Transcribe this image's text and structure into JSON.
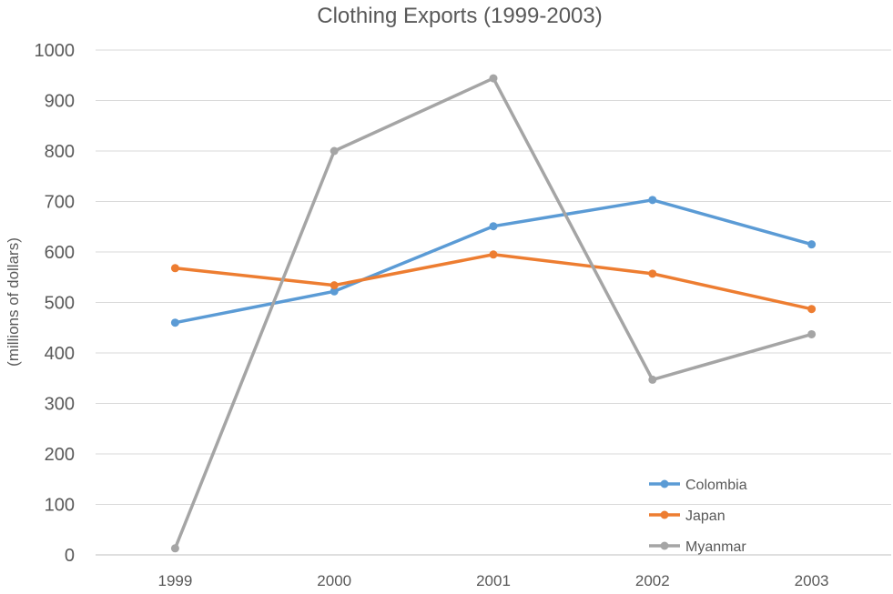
{
  "chart_data": {
    "type": "line",
    "title": "Clothing Exports (1999-2003)",
    "xlabel": "",
    "ylabel": "(millions of dollars)",
    "ylim": [
      0,
      1000
    ],
    "yticks": [
      0,
      100,
      200,
      300,
      400,
      500,
      600,
      700,
      800,
      900,
      1000
    ],
    "categories": [
      "1999",
      "2000",
      "2001",
      "2002",
      "2003"
    ],
    "grid": true,
    "legend_position": "bottom-right",
    "series": [
      {
        "name": "Colombia",
        "color": "#5B9BD5",
        "values": [
          460,
          522,
          651,
          703,
          615
        ]
      },
      {
        "name": "Japan",
        "color": "#ED7D31",
        "values": [
          568,
          534,
          595,
          557,
          487
        ]
      },
      {
        "name": "Myanmar",
        "color": "#A5A5A5",
        "values": [
          13,
          800,
          944,
          347,
          437
        ]
      }
    ]
  }
}
